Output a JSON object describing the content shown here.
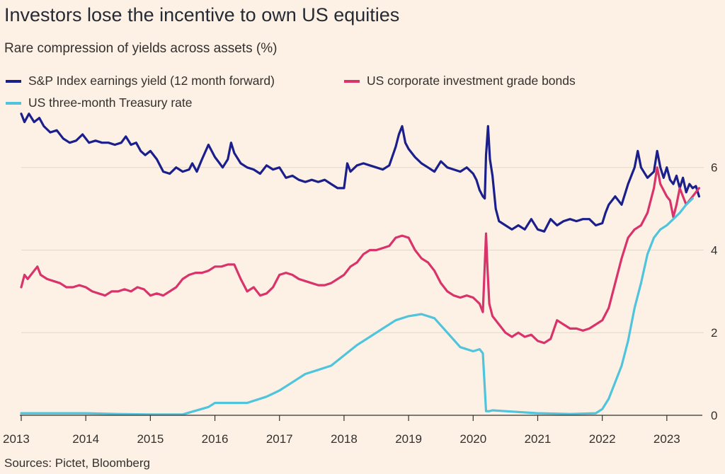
{
  "title": "Investors lose the incentive to own US equities",
  "subtitle": "Rare compression of yields across assets (%)",
  "source": "Sources: Pictet, Bloomberg",
  "legend": [
    {
      "label": "S&P Index earnings yield (12 month forward)",
      "color": "#1a1f8c"
    },
    {
      "label": "US corporate investment grade bonds",
      "color": "#d9336b"
    },
    {
      "label": "US three-month Treasury rate",
      "color": "#4fc4dc"
    }
  ],
  "colors": {
    "background": "#fdf1e5",
    "grid": "#e3d7c9",
    "axis": "#33302e",
    "sp": "#1a1f8c",
    "ig": "#d9336b",
    "tbill": "#4fc4dc"
  },
  "chart_data": {
    "type": "line",
    "title": "Investors lose the incentive to own US equities",
    "subtitle": "Rare compression of yields across assets (%)",
    "xlabel": "",
    "ylabel": "%",
    "xlim": [
      2013.0,
      2023.55
    ],
    "ylim": [
      0,
      7.4
    ],
    "yticks": [
      0,
      2,
      4,
      6
    ],
    "xticks": [
      2013,
      2014,
      2015,
      2016,
      2017,
      2018,
      2019,
      2020,
      2021,
      2022,
      2023
    ],
    "grid": "horizontal",
    "legend_position": "top-left",
    "series": [
      {
        "name": "S&P Index earnings yield (12 month forward)",
        "key": "sp",
        "x": [
          2013.0,
          2013.05,
          2013.12,
          2013.2,
          2013.28,
          2013.35,
          2013.45,
          2013.55,
          2013.65,
          2013.75,
          2013.85,
          2013.95,
          2014.05,
          2014.15,
          2014.25,
          2014.35,
          2014.45,
          2014.55,
          2014.62,
          2014.7,
          2014.78,
          2014.85,
          2014.92,
          2015.0,
          2015.1,
          2015.2,
          2015.3,
          2015.4,
          2015.5,
          2015.6,
          2015.65,
          2015.72,
          2015.8,
          2015.9,
          2016.0,
          2016.05,
          2016.12,
          2016.2,
          2016.25,
          2016.3,
          2016.4,
          2016.5,
          2016.6,
          2016.7,
          2016.8,
          2016.9,
          2017.0,
          2017.1,
          2017.2,
          2017.3,
          2017.4,
          2017.5,
          2017.6,
          2017.7,
          2017.8,
          2017.9,
          2018.0,
          2018.05,
          2018.1,
          2018.2,
          2018.3,
          2018.4,
          2018.5,
          2018.6,
          2018.7,
          2018.8,
          2018.85,
          2018.9,
          2018.95,
          2019.0,
          2019.1,
          2019.2,
          2019.3,
          2019.4,
          2019.5,
          2019.6,
          2019.7,
          2019.8,
          2019.9,
          2020.0,
          2020.05,
          2020.1,
          2020.15,
          2020.18,
          2020.2,
          2020.23,
          2020.26,
          2020.3,
          2020.35,
          2020.4,
          2020.5,
          2020.6,
          2020.7,
          2020.8,
          2020.9,
          2021.0,
          2021.1,
          2021.2,
          2021.3,
          2021.4,
          2021.5,
          2021.6,
          2021.7,
          2021.8,
          2021.9,
          2022.0,
          2022.05,
          2022.1,
          2022.2,
          2022.3,
          2022.4,
          2022.5,
          2022.55,
          2022.6,
          2022.7,
          2022.8,
          2022.85,
          2022.9,
          2022.95,
          2023.0,
          2023.05,
          2023.1,
          2023.15,
          2023.2,
          2023.25,
          2023.3,
          2023.35,
          2023.4,
          2023.45,
          2023.5
        ],
        "values": [
          7.3,
          7.1,
          7.3,
          7.1,
          7.2,
          7.0,
          6.85,
          6.9,
          6.7,
          6.6,
          6.65,
          6.8,
          6.6,
          6.65,
          6.6,
          6.6,
          6.55,
          6.6,
          6.75,
          6.55,
          6.6,
          6.4,
          6.3,
          6.4,
          6.2,
          5.9,
          5.85,
          6.0,
          5.9,
          5.95,
          6.1,
          5.9,
          6.2,
          6.55,
          6.25,
          6.15,
          6.0,
          6.2,
          6.6,
          6.35,
          6.1,
          6.0,
          5.95,
          5.85,
          6.05,
          5.95,
          6.0,
          5.75,
          5.8,
          5.7,
          5.65,
          5.7,
          5.65,
          5.7,
          5.6,
          5.5,
          5.5,
          6.1,
          5.9,
          6.05,
          6.1,
          6.05,
          6.0,
          5.95,
          6.05,
          6.5,
          6.8,
          7.0,
          6.6,
          6.45,
          6.25,
          6.1,
          6.0,
          5.9,
          6.15,
          6.0,
          5.95,
          5.9,
          6.0,
          5.85,
          5.7,
          5.45,
          5.3,
          5.25,
          6.3,
          7.0,
          6.2,
          5.8,
          5.0,
          4.7,
          4.6,
          4.5,
          4.6,
          4.5,
          4.75,
          4.5,
          4.45,
          4.75,
          4.6,
          4.7,
          4.75,
          4.7,
          4.75,
          4.75,
          4.6,
          4.65,
          4.9,
          5.1,
          5.3,
          5.1,
          5.6,
          6.0,
          6.4,
          6.0,
          5.75,
          5.9,
          6.4,
          6.0,
          5.75,
          6.0,
          5.7,
          5.6,
          5.8,
          5.5,
          5.75,
          5.4,
          5.6,
          5.5,
          5.55,
          5.3
        ]
      },
      {
        "name": "US corporate investment grade bonds",
        "key": "ig",
        "x": [
          2013.0,
          2013.05,
          2013.1,
          2013.2,
          2013.25,
          2013.3,
          2013.4,
          2013.5,
          2013.6,
          2013.7,
          2013.8,
          2013.9,
          2014.0,
          2014.1,
          2014.2,
          2014.3,
          2014.4,
          2014.5,
          2014.6,
          2014.7,
          2014.8,
          2014.9,
          2015.0,
          2015.1,
          2015.2,
          2015.3,
          2015.4,
          2015.5,
          2015.6,
          2015.7,
          2015.8,
          2015.9,
          2016.0,
          2016.1,
          2016.2,
          2016.3,
          2016.4,
          2016.5,
          2016.6,
          2016.7,
          2016.8,
          2016.9,
          2017.0,
          2017.1,
          2017.2,
          2017.3,
          2017.4,
          2017.5,
          2017.6,
          2017.7,
          2017.8,
          2017.9,
          2018.0,
          2018.1,
          2018.2,
          2018.3,
          2018.4,
          2018.5,
          2018.6,
          2018.7,
          2018.8,
          2018.9,
          2019.0,
          2019.1,
          2019.2,
          2019.3,
          2019.4,
          2019.5,
          2019.6,
          2019.7,
          2019.8,
          2019.9,
          2020.0,
          2020.1,
          2020.15,
          2020.2,
          2020.22,
          2020.25,
          2020.3,
          2020.4,
          2020.5,
          2020.6,
          2020.7,
          2020.8,
          2020.9,
          2021.0,
          2021.1,
          2021.2,
          2021.3,
          2021.4,
          2021.5,
          2021.6,
          2021.7,
          2021.8,
          2021.9,
          2022.0,
          2022.1,
          2022.2,
          2022.3,
          2022.4,
          2022.5,
          2022.6,
          2022.7,
          2022.8,
          2022.85,
          2022.9,
          2023.0,
          2023.05,
          2023.1,
          2023.15,
          2023.2,
          2023.25,
          2023.3,
          2023.4,
          2023.5
        ],
        "values": [
          3.1,
          3.4,
          3.3,
          3.5,
          3.6,
          3.4,
          3.3,
          3.25,
          3.2,
          3.1,
          3.1,
          3.15,
          3.1,
          3.0,
          2.95,
          2.9,
          3.0,
          3.0,
          3.05,
          3.0,
          3.1,
          3.05,
          2.9,
          2.95,
          2.9,
          3.0,
          3.1,
          3.3,
          3.4,
          3.45,
          3.45,
          3.5,
          3.6,
          3.6,
          3.65,
          3.65,
          3.3,
          3.0,
          3.1,
          2.9,
          2.95,
          3.1,
          3.4,
          3.45,
          3.4,
          3.3,
          3.25,
          3.2,
          3.15,
          3.15,
          3.2,
          3.3,
          3.4,
          3.6,
          3.7,
          3.9,
          4.0,
          4.0,
          4.05,
          4.1,
          4.3,
          4.35,
          4.3,
          4.0,
          3.8,
          3.7,
          3.5,
          3.2,
          3.0,
          2.9,
          2.85,
          2.9,
          2.85,
          2.7,
          2.5,
          4.4,
          3.6,
          2.7,
          2.4,
          2.2,
          2.0,
          1.9,
          2.0,
          1.9,
          1.95,
          1.8,
          1.75,
          1.85,
          2.3,
          2.2,
          2.1,
          2.1,
          2.05,
          2.1,
          2.2,
          2.3,
          2.6,
          3.2,
          3.8,
          4.3,
          4.5,
          4.6,
          4.9,
          5.5,
          6.0,
          5.6,
          5.3,
          5.2,
          4.8,
          5.1,
          5.5,
          5.3,
          5.1,
          5.3,
          5.5
        ]
      },
      {
        "name": "US three-month Treasury rate",
        "key": "tbill",
        "x": [
          2013.0,
          2013.5,
          2014.0,
          2014.5,
          2015.0,
          2015.5,
          2015.9,
          2016.0,
          2016.3,
          2016.5,
          2016.8,
          2017.0,
          2017.2,
          2017.4,
          2017.6,
          2017.8,
          2018.0,
          2018.2,
          2018.4,
          2018.6,
          2018.8,
          2019.0,
          2019.2,
          2019.4,
          2019.6,
          2019.8,
          2020.0,
          2020.1,
          2020.15,
          2020.2,
          2020.25,
          2020.3,
          2020.5,
          2021.0,
          2021.5,
          2021.9,
          2022.0,
          2022.1,
          2022.2,
          2022.3,
          2022.4,
          2022.5,
          2022.6,
          2022.7,
          2022.8,
          2022.9,
          2023.0,
          2023.1,
          2023.2,
          2023.3,
          2023.4
        ],
        "values": [
          0.05,
          0.05,
          0.05,
          0.03,
          0.02,
          0.02,
          0.2,
          0.3,
          0.3,
          0.3,
          0.45,
          0.6,
          0.8,
          1.0,
          1.1,
          1.2,
          1.45,
          1.7,
          1.9,
          2.1,
          2.3,
          2.4,
          2.45,
          2.35,
          2.0,
          1.65,
          1.55,
          1.6,
          1.5,
          0.1,
          0.1,
          0.12,
          0.1,
          0.05,
          0.03,
          0.05,
          0.15,
          0.4,
          0.8,
          1.2,
          1.8,
          2.6,
          3.2,
          3.9,
          4.3,
          4.5,
          4.6,
          4.75,
          4.9,
          5.1,
          5.25
        ]
      }
    ]
  }
}
